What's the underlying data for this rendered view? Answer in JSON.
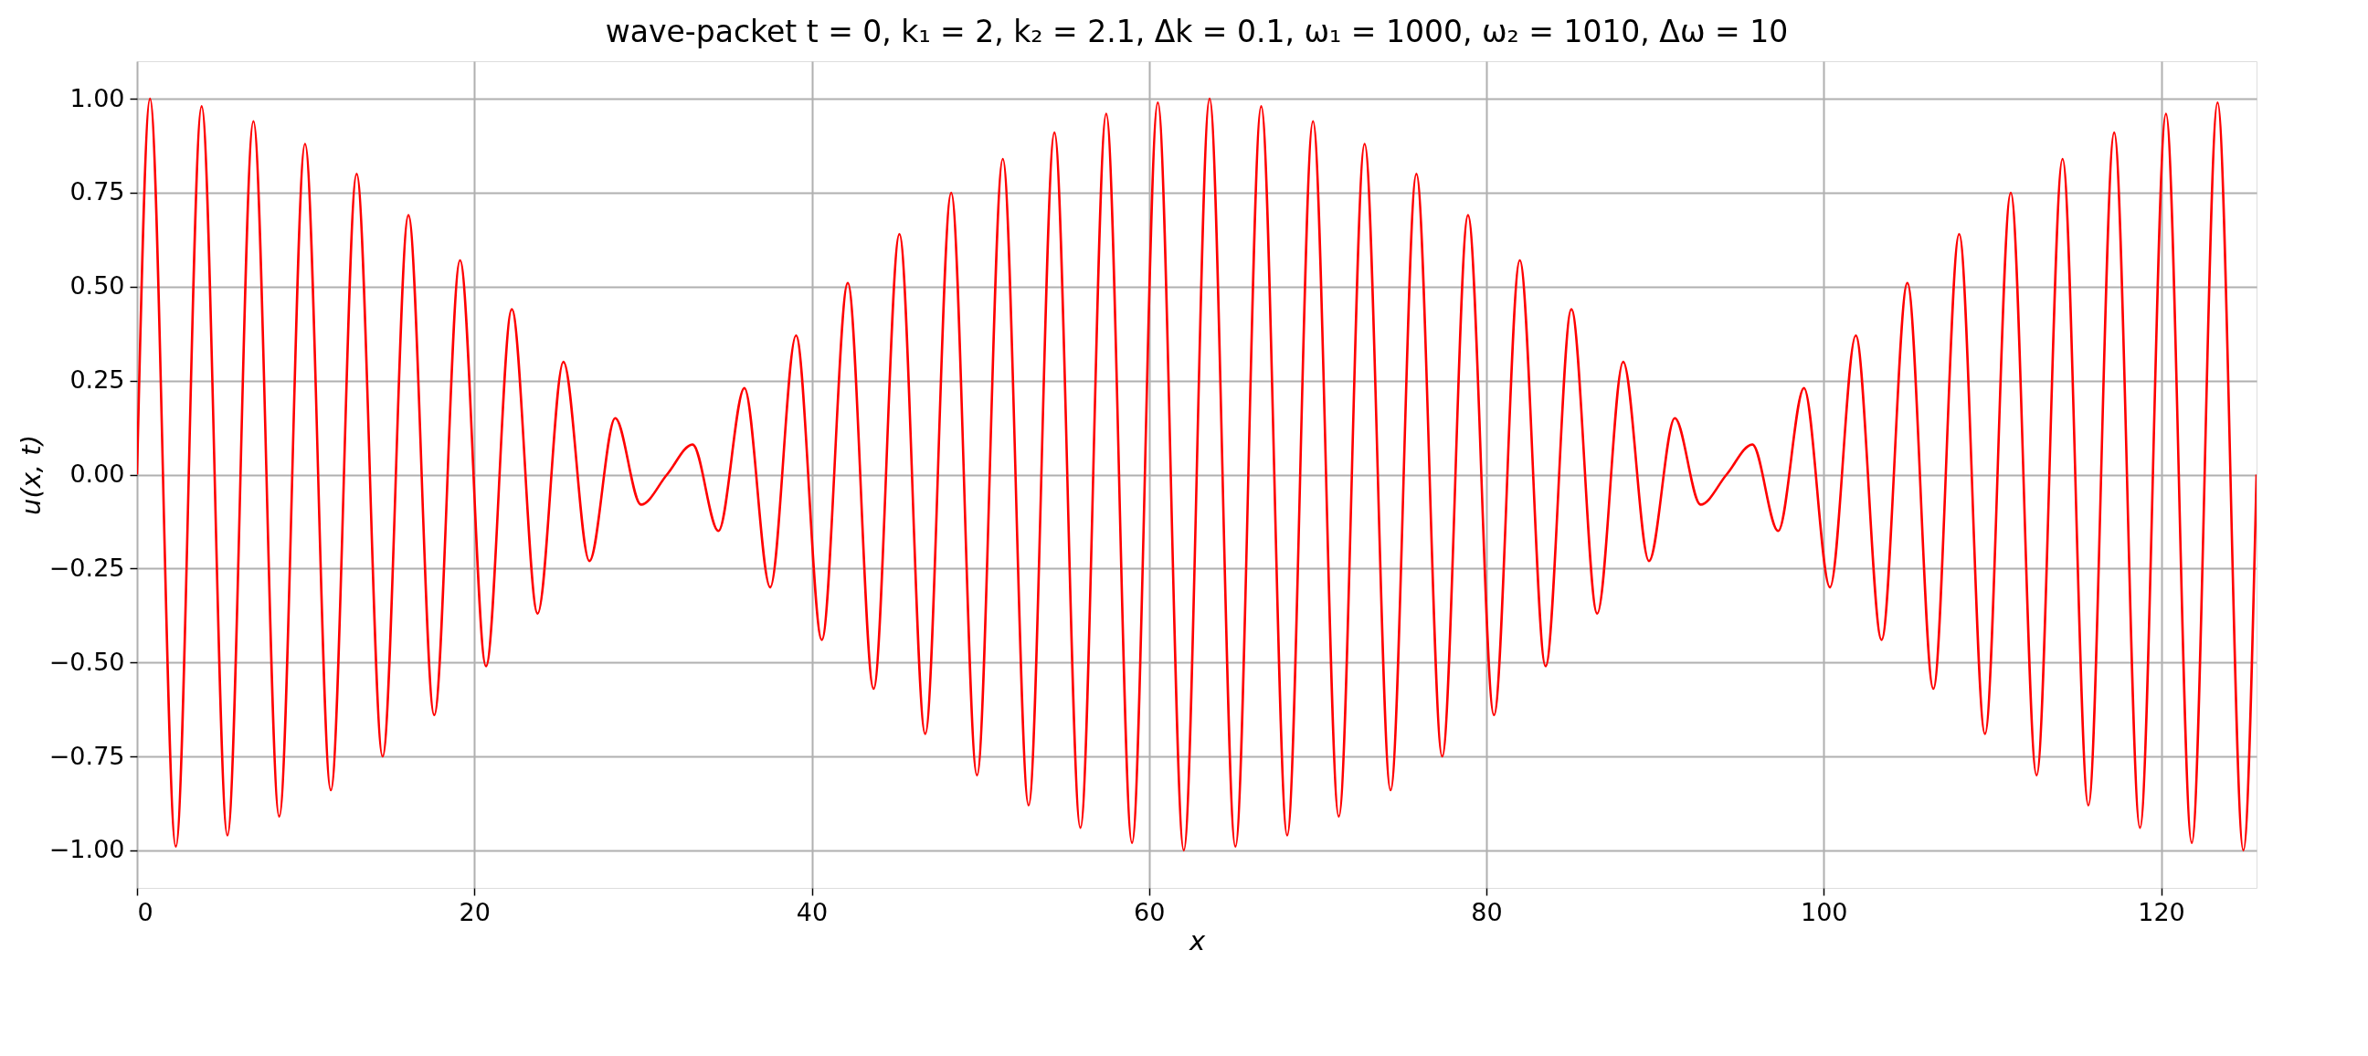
{
  "chart_data": {
    "type": "line",
    "title": "wave-packet   t = 0,  k₁ = 2,  k₂ = 2.1,  Δk = 0.1,  ω₁ = 1000,  ω₂ = 1010,  Δω = 10",
    "xlabel": "x",
    "ylabel": "u(x, t)",
    "x": [
      0,
      0.77,
      2.3,
      3.83,
      5.36,
      6.9,
      8.43,
      9.96,
      11.49,
      13.02,
      14.56,
      16.09,
      17.62,
      19.15,
      20.69,
      22.22,
      23.75,
      25.28,
      26.82,
      28.35,
      29.88,
      31.42,
      32.94,
      34.47,
      36.01,
      37.54,
      39.07,
      40.6,
      42.14,
      43.67,
      45.2,
      46.73,
      48.27,
      49.8,
      51.33,
      52.86,
      54.39,
      55.93,
      57.46,
      58.99,
      60.52,
      62.06,
      63.59,
      65.12,
      66.65,
      68.19,
      69.72,
      71.25,
      72.78,
      74.32,
      75.85,
      77.38,
      78.91,
      80.45,
      81.98,
      83.51,
      85.04,
      86.57,
      88.11,
      89.64,
      91.17,
      92.7,
      94.24,
      95.77,
      97.3,
      98.83,
      100.37,
      101.9,
      103.43,
      104.96,
      106.5,
      108.03,
      109.56,
      111.09,
      112.62,
      114.16,
      115.69,
      117.22,
      118.75,
      120.29,
      121.82,
      123.35,
      124.88,
      125.66
    ],
    "series": [
      {
        "color": "#ff0000",
        "values": [
          0,
          1.0,
          -0.99,
          0.98,
          -0.96,
          0.94,
          -0.91,
          0.88,
          -0.84,
          0.8,
          -0.75,
          0.69,
          -0.64,
          0.57,
          -0.51,
          0.44,
          -0.37,
          0.3,
          -0.23,
          0.15,
          -0.08,
          0.0,
          0.08,
          -0.15,
          0.23,
          -0.3,
          0.37,
          -0.44,
          0.51,
          -0.57,
          0.64,
          -0.69,
          0.75,
          -0.8,
          0.84,
          -0.88,
          0.91,
          -0.94,
          0.96,
          -0.98,
          0.99,
          -1.0,
          1.0,
          -0.99,
          0.98,
          -0.96,
          0.94,
          -0.91,
          0.88,
          -0.84,
          0.8,
          -0.75,
          0.69,
          -0.64,
          0.57,
          -0.51,
          0.44,
          -0.37,
          0.3,
          -0.23,
          0.15,
          -0.08,
          0.0,
          0.08,
          -0.15,
          0.23,
          -0.3,
          0.37,
          -0.44,
          0.51,
          -0.57,
          0.64,
          -0.69,
          0.75,
          -0.8,
          0.84,
          -0.88,
          0.91,
          -0.94,
          0.96,
          -0.98,
          0.99,
          -1.0,
          0
        ]
      }
    ],
    "xlim": [
      0,
      125.66
    ],
    "xticks": [
      0,
      20,
      40,
      60,
      80,
      100,
      120
    ],
    "ylim": [
      -1.1,
      1.1
    ],
    "yticks": [
      {
        "value": -1,
        "label": "−1.00"
      },
      {
        "value": -0.75,
        "label": "−0.75"
      },
      {
        "value": -0.5,
        "label": "−0.50"
      },
      {
        "value": -0.25,
        "label": "−0.25"
      },
      {
        "value": 0,
        "label": "0.00"
      },
      {
        "value": 0.25,
        "label": "0.25"
      },
      {
        "value": 0.5,
        "label": "0.50"
      },
      {
        "value": 0.75,
        "label": "0.75"
      },
      {
        "value": 1,
        "label": "1.00"
      }
    ],
    "grid": true,
    "marker": "none",
    "line_style": "solid"
  }
}
